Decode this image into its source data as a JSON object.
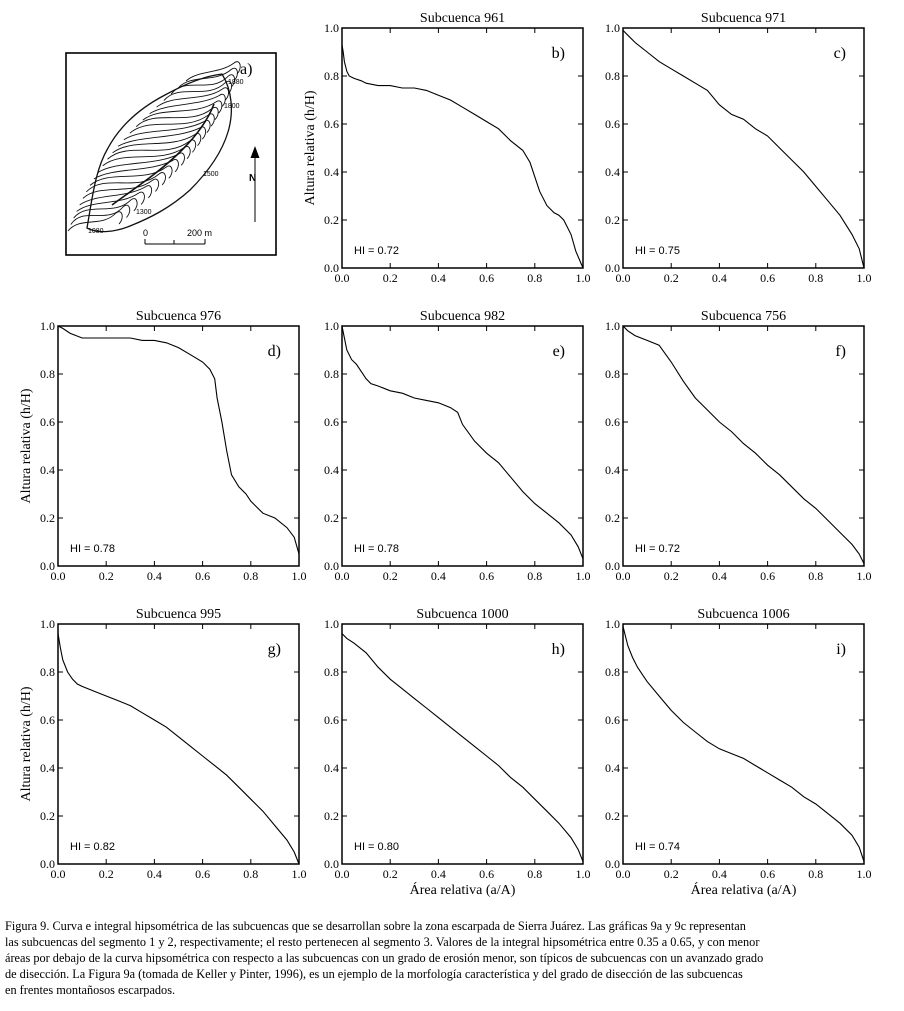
{
  "figure": {
    "panel_a": {
      "letter": "a)",
      "contour_labels": [
        "1880",
        "1800",
        "1500",
        "1300",
        "1080"
      ],
      "scale_zero": "0",
      "scale_label": "200 m",
      "north_label": "N"
    }
  },
  "chart_data": [
    {
      "type": "line",
      "title": "Subcuenca 961",
      "letter": "b)",
      "hi": "HI = 0.72",
      "ylabel": "Altura relativa (h/H)",
      "xlabel": "",
      "xlim": [
        0,
        1
      ],
      "ylim": [
        0,
        1
      ],
      "xticks": [
        "0.0",
        "0.2",
        "0.4",
        "0.6",
        "0.8",
        "1.0"
      ],
      "yticks": [
        "0.0",
        "0.2",
        "0.4",
        "0.6",
        "0.8",
        "1.0"
      ],
      "x": [
        0,
        0.005,
        0.01,
        0.02,
        0.03,
        0.05,
        0.08,
        0.1,
        0.15,
        0.2,
        0.25,
        0.3,
        0.35,
        0.4,
        0.45,
        0.5,
        0.55,
        0.6,
        0.65,
        0.7,
        0.75,
        0.78,
        0.8,
        0.82,
        0.85,
        0.88,
        0.9,
        0.92,
        0.95,
        0.97,
        1.0
      ],
      "y": [
        0.93,
        0.9,
        0.86,
        0.82,
        0.8,
        0.79,
        0.78,
        0.77,
        0.76,
        0.76,
        0.75,
        0.75,
        0.74,
        0.72,
        0.7,
        0.67,
        0.64,
        0.61,
        0.58,
        0.53,
        0.49,
        0.44,
        0.38,
        0.32,
        0.26,
        0.23,
        0.22,
        0.2,
        0.14,
        0.07,
        0.0
      ]
    },
    {
      "type": "line",
      "title": "Subcuenca 971",
      "letter": "c)",
      "hi": "HI = 0.75",
      "ylabel": "",
      "xlabel": "",
      "xlim": [
        0,
        1
      ],
      "ylim": [
        0,
        1
      ],
      "xticks": [
        "0.0",
        "0.2",
        "0.4",
        "0.6",
        "0.8",
        "1.0"
      ],
      "yticks": [
        "0.0",
        "0.2",
        "0.4",
        "0.6",
        "0.8",
        "1.0"
      ],
      "x": [
        0,
        0.02,
        0.05,
        0.1,
        0.15,
        0.2,
        0.25,
        0.3,
        0.35,
        0.4,
        0.45,
        0.5,
        0.55,
        0.6,
        0.65,
        0.7,
        0.75,
        0.8,
        0.85,
        0.9,
        0.95,
        0.98,
        1.0
      ],
      "y": [
        0.99,
        0.97,
        0.94,
        0.9,
        0.86,
        0.83,
        0.8,
        0.77,
        0.74,
        0.68,
        0.64,
        0.62,
        0.58,
        0.55,
        0.5,
        0.45,
        0.4,
        0.34,
        0.28,
        0.22,
        0.14,
        0.08,
        0.0
      ]
    },
    {
      "type": "line",
      "title": "Subcuenca 976",
      "letter": "d)",
      "hi": "HI = 0.78",
      "ylabel": "Altura relativa (h/H)",
      "xlabel": "",
      "xlim": [
        0,
        1
      ],
      "ylim": [
        0,
        1
      ],
      "xticks": [
        "0.0",
        "0.2",
        "0.4",
        "0.6",
        "0.8",
        "1.0"
      ],
      "yticks": [
        "0.0",
        "0.2",
        "0.4",
        "0.6",
        "0.8",
        "1.0"
      ],
      "x": [
        0,
        0.02,
        0.05,
        0.1,
        0.2,
        0.3,
        0.35,
        0.4,
        0.45,
        0.5,
        0.55,
        0.6,
        0.63,
        0.65,
        0.66,
        0.68,
        0.7,
        0.72,
        0.75,
        0.78,
        0.8,
        0.85,
        0.9,
        0.95,
        0.98,
        1.0
      ],
      "y": [
        1.0,
        0.99,
        0.97,
        0.95,
        0.95,
        0.95,
        0.94,
        0.94,
        0.93,
        0.91,
        0.88,
        0.85,
        0.82,
        0.78,
        0.7,
        0.6,
        0.48,
        0.38,
        0.33,
        0.3,
        0.27,
        0.22,
        0.2,
        0.16,
        0.12,
        0.05
      ]
    },
    {
      "type": "line",
      "title": "Subcuenca 982",
      "letter": "e)",
      "hi": "HI = 0.78",
      "ylabel": "",
      "xlabel": "",
      "xlim": [
        0,
        1
      ],
      "ylim": [
        0,
        1
      ],
      "xticks": [
        "0.0",
        "0.2",
        "0.4",
        "0.6",
        "0.8",
        "1.0"
      ],
      "yticks": [
        "0.0",
        "0.2",
        "0.4",
        "0.6",
        "0.8",
        "1.0"
      ],
      "x": [
        0,
        0.01,
        0.02,
        0.04,
        0.06,
        0.08,
        0.1,
        0.12,
        0.15,
        0.2,
        0.25,
        0.3,
        0.35,
        0.4,
        0.45,
        0.48,
        0.5,
        0.55,
        0.6,
        0.65,
        0.7,
        0.75,
        0.8,
        0.85,
        0.9,
        0.95,
        0.98,
        1.0
      ],
      "y": [
        1.0,
        0.95,
        0.9,
        0.86,
        0.84,
        0.81,
        0.78,
        0.76,
        0.75,
        0.73,
        0.72,
        0.7,
        0.69,
        0.68,
        0.66,
        0.64,
        0.59,
        0.52,
        0.47,
        0.43,
        0.37,
        0.31,
        0.26,
        0.22,
        0.18,
        0.13,
        0.08,
        0.03
      ]
    },
    {
      "type": "line",
      "title": "Subcuenca 756",
      "letter": "f)",
      "hi": "HI = 0.72",
      "ylabel": "",
      "xlabel": "",
      "xlim": [
        0,
        1
      ],
      "ylim": [
        0,
        1
      ],
      "xticks": [
        "0.0",
        "0.2",
        "0.4",
        "0.6",
        "0.8",
        "1.0"
      ],
      "yticks": [
        "0.0",
        "0.2",
        "0.4",
        "0.6",
        "0.8",
        "1.0"
      ],
      "x": [
        0,
        0.02,
        0.05,
        0.1,
        0.15,
        0.2,
        0.25,
        0.3,
        0.35,
        0.4,
        0.45,
        0.5,
        0.55,
        0.6,
        0.65,
        0.7,
        0.75,
        0.8,
        0.85,
        0.9,
        0.95,
        0.98,
        1.0
      ],
      "y": [
        1.0,
        0.98,
        0.96,
        0.94,
        0.92,
        0.85,
        0.77,
        0.7,
        0.65,
        0.6,
        0.56,
        0.51,
        0.47,
        0.42,
        0.38,
        0.33,
        0.28,
        0.24,
        0.19,
        0.14,
        0.09,
        0.05,
        0.01
      ]
    },
    {
      "type": "line",
      "title": "Subcuenca 995",
      "letter": "g)",
      "hi": "HI = 0.82",
      "ylabel": "Altura relativa (h/H)",
      "xlabel": "",
      "xlim": [
        0,
        1
      ],
      "ylim": [
        0,
        1
      ],
      "xticks": [
        "0.0",
        "0.2",
        "0.4",
        "0.6",
        "0.8",
        "1.0"
      ],
      "yticks": [
        "0.0",
        "0.2",
        "0.4",
        "0.6",
        "0.8",
        "1.0"
      ],
      "x": [
        0,
        0.01,
        0.02,
        0.04,
        0.06,
        0.08,
        0.1,
        0.15,
        0.2,
        0.25,
        0.3,
        0.35,
        0.4,
        0.45,
        0.5,
        0.55,
        0.6,
        0.65,
        0.7,
        0.75,
        0.8,
        0.85,
        0.9,
        0.95,
        0.98,
        1.0
      ],
      "y": [
        0.96,
        0.9,
        0.85,
        0.8,
        0.77,
        0.75,
        0.74,
        0.72,
        0.7,
        0.68,
        0.66,
        0.63,
        0.6,
        0.57,
        0.53,
        0.49,
        0.45,
        0.41,
        0.37,
        0.32,
        0.27,
        0.22,
        0.16,
        0.1,
        0.05,
        0.0
      ]
    },
    {
      "type": "line",
      "title": "Subcuenca 1000",
      "letter": "h)",
      "hi": "HI = 0.80",
      "ylabel": "",
      "xlabel": "Área relativa (a/A)",
      "xlim": [
        0,
        1
      ],
      "ylim": [
        0,
        1
      ],
      "xticks": [
        "0.0",
        "0.2",
        "0.4",
        "0.6",
        "0.8",
        "1.0"
      ],
      "yticks": [
        "0.0",
        "0.2",
        "0.4",
        "0.6",
        "0.8",
        "1.0"
      ],
      "x": [
        0,
        0.02,
        0.05,
        0.1,
        0.15,
        0.2,
        0.25,
        0.3,
        0.35,
        0.4,
        0.45,
        0.5,
        0.55,
        0.6,
        0.65,
        0.7,
        0.75,
        0.8,
        0.85,
        0.9,
        0.95,
        0.98,
        1.0
      ],
      "y": [
        0.96,
        0.94,
        0.92,
        0.88,
        0.82,
        0.77,
        0.73,
        0.69,
        0.65,
        0.61,
        0.57,
        0.53,
        0.49,
        0.45,
        0.41,
        0.36,
        0.32,
        0.27,
        0.22,
        0.17,
        0.11,
        0.06,
        0.01
      ]
    },
    {
      "type": "line",
      "title": "Subcuenca 1006",
      "letter": "i)",
      "hi": "HI = 0.74",
      "ylabel": "",
      "xlabel": "Área relativa (a/A)",
      "xlim": [
        0,
        1
      ],
      "ylim": [
        0,
        1
      ],
      "xticks": [
        "0.0",
        "0.2",
        "0.4",
        "0.6",
        "0.8",
        "1.0"
      ],
      "yticks": [
        "0.0",
        "0.2",
        "0.4",
        "0.6",
        "0.8",
        "1.0"
      ],
      "x": [
        0,
        0.01,
        0.02,
        0.04,
        0.06,
        0.08,
        0.1,
        0.15,
        0.2,
        0.25,
        0.3,
        0.35,
        0.4,
        0.45,
        0.5,
        0.55,
        0.6,
        0.65,
        0.7,
        0.75,
        0.8,
        0.85,
        0.9,
        0.95,
        0.98,
        1.0
      ],
      "y": [
        0.99,
        0.95,
        0.91,
        0.86,
        0.82,
        0.79,
        0.76,
        0.7,
        0.64,
        0.59,
        0.55,
        0.51,
        0.48,
        0.46,
        0.44,
        0.41,
        0.38,
        0.35,
        0.32,
        0.28,
        0.25,
        0.21,
        0.17,
        0.12,
        0.07,
        0.01
      ]
    }
  ],
  "caption": {
    "line1": "Figura 9. Curva e integral hipsométrica de las subcuencas que se desarrollan sobre la zona escarpada de Sierra Juárez. Las gráficas 9a y 9c representan",
    "line2": "las subcuencas del segmento 1 y 2, respectivamente; el resto pertenecen al segmento 3. Valores de la integral hipsométrica entre 0.35 a 0.65, y con menor",
    "line3": "áreas por debajo de la curva hipsométrica con respecto a las subcuencas con un grado de erosión menor, son típicos de subcuencas con un avanzado grado",
    "line4": "de disección. La Figura 9a (tomada de Keller y Pinter, 1996), es un ejemplo de la morfología característica y del grado de disección de las subcuencas",
    "line5": "en frentes montañosos escarpados."
  }
}
